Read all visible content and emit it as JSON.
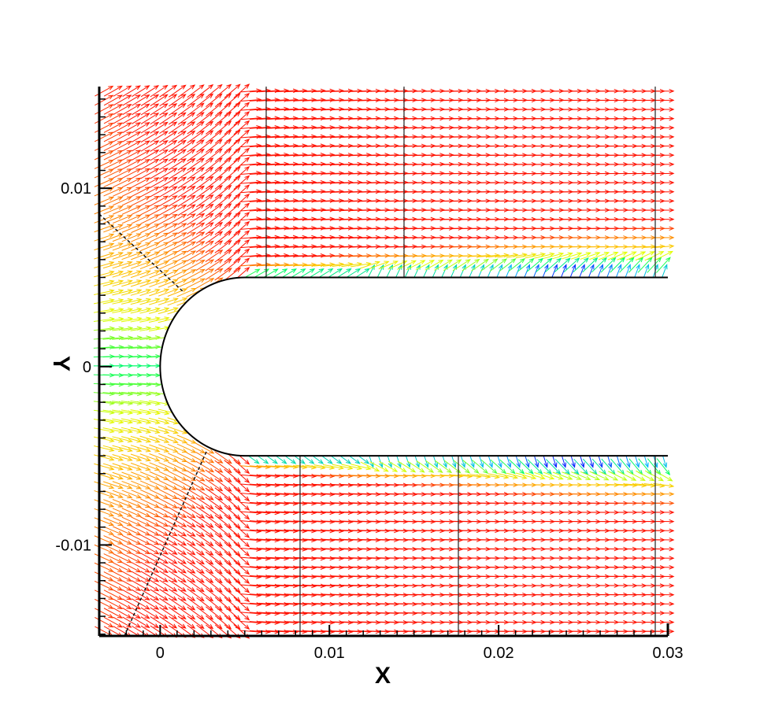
{
  "chart_data": {
    "type": "vector-field",
    "title": "",
    "xlabel": "X",
    "ylabel": "Y",
    "xlim": [
      -0.0036,
      0.03
    ],
    "ylim": [
      -0.0151,
      0.0157
    ],
    "xticks": [
      {
        "value": 0,
        "label": "0"
      },
      {
        "value": 0.01,
        "label": "0.01"
      },
      {
        "value": 0.02,
        "label": "0.02"
      },
      {
        "value": 0.03,
        "label": "0.03"
      }
    ],
    "yticks": [
      {
        "value": 0.01,
        "label": "0.01"
      },
      {
        "value": 0,
        "label": "0"
      },
      {
        "value": -0.01,
        "label": "-0.01"
      }
    ],
    "body": {
      "shape": "blunt flat plate with semicircular leading edge",
      "nose_x": 0,
      "radius": 0.005,
      "half_thickness": 0.005,
      "extends_to_x": 0.03
    },
    "color_scale": [
      "#0010ff",
      "#00b4ff",
      "#00ff60",
      "#e0ff00",
      "#ffc000",
      "#ff7a00",
      "#ff1000"
    ],
    "grid": false,
    "legend": "none"
  }
}
